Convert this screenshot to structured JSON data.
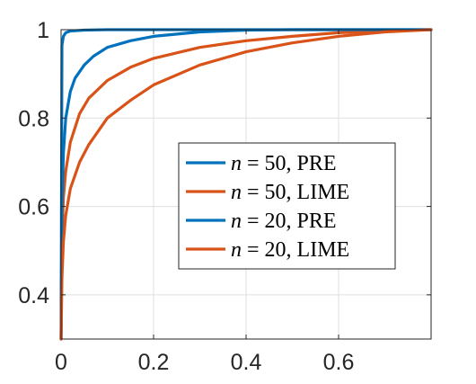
{
  "chart_data": {
    "type": "line",
    "title": "",
    "xlabel": "",
    "ylabel": "",
    "xlim": [
      0,
      0.8
    ],
    "ylim": [
      0.3,
      1.0
    ],
    "x_ticks": [
      0,
      0.2,
      0.4,
      0.6
    ],
    "x_tick_labels": [
      "0",
      "0.2",
      "0.4",
      "0.6"
    ],
    "y_ticks": [
      0.4,
      0.6,
      0.8,
      1.0
    ],
    "y_tick_labels": [
      "0.4",
      "0.6",
      "0.8",
      "1"
    ],
    "grid": true,
    "legend_position": "right",
    "series": [
      {
        "name": "n = 50, PRE",
        "legend_math": "n",
        "legend_rest": " = 50, PRE",
        "color": "#0072BD",
        "x": [
          0,
          0.002,
          0.005,
          0.01,
          0.02,
          0.05,
          0.1,
          0.2,
          0.8
        ],
        "y": [
          0.3,
          0.965,
          0.985,
          0.993,
          0.997,
          0.999,
          1.0,
          1.0,
          1.0
        ]
      },
      {
        "name": "n = 50, LIME",
        "legend_math": "n",
        "legend_rest": " = 50, LIME",
        "color": "#D95319",
        "x": [
          0,
          0.002,
          0.005,
          0.01,
          0.02,
          0.04,
          0.06,
          0.1,
          0.15,
          0.2,
          0.3,
          0.4,
          0.5,
          0.6,
          0.7,
          0.8
        ],
        "y": [
          0.3,
          0.53,
          0.62,
          0.68,
          0.745,
          0.81,
          0.845,
          0.885,
          0.915,
          0.935,
          0.96,
          0.975,
          0.985,
          0.993,
          0.998,
          1.0
        ]
      },
      {
        "name": "n = 20, PRE",
        "legend_math": "n",
        "legend_rest": " = 20, PRE",
        "color": "#0072BD",
        "x": [
          0,
          0.002,
          0.005,
          0.01,
          0.02,
          0.03,
          0.05,
          0.07,
          0.1,
          0.15,
          0.2,
          0.3,
          0.4,
          0.5,
          0.8
        ],
        "y": [
          0.3,
          0.6,
          0.72,
          0.8,
          0.86,
          0.89,
          0.92,
          0.94,
          0.96,
          0.975,
          0.985,
          0.995,
          0.999,
          1.0,
          1.0
        ]
      },
      {
        "name": "n = 20, LIME",
        "legend_math": "n",
        "legend_rest": " = 20, LIME",
        "color": "#D95319",
        "x": [
          0,
          0.002,
          0.005,
          0.01,
          0.02,
          0.04,
          0.06,
          0.1,
          0.15,
          0.2,
          0.3,
          0.4,
          0.5,
          0.6,
          0.7,
          0.8
        ],
        "y": [
          0.3,
          0.44,
          0.52,
          0.58,
          0.64,
          0.7,
          0.74,
          0.8,
          0.84,
          0.875,
          0.92,
          0.95,
          0.97,
          0.985,
          0.995,
          1.0
        ]
      }
    ]
  }
}
